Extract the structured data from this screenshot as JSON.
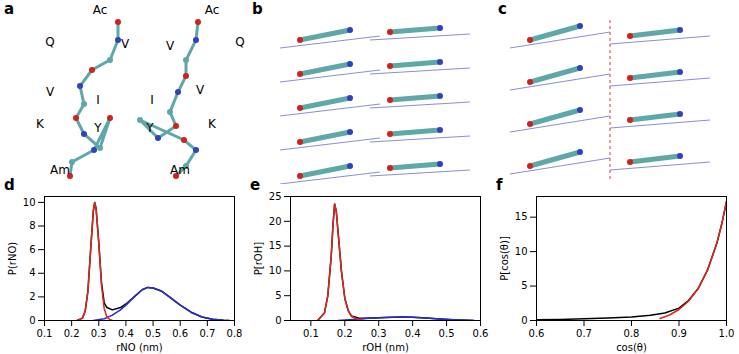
{
  "figure": {
    "panels": [
      {
        "label": "a",
        "residue_labels": [
          "Ac",
          "Q",
          "V",
          "V",
          "I",
          "K",
          "Y",
          "Am",
          "Ac",
          "V",
          "Q",
          "I",
          "V",
          "Y",
          "K",
          "Am"
        ]
      },
      {
        "label": "b"
      },
      {
        "label": "c"
      }
    ]
  },
  "chart_data": [
    {
      "type": "line",
      "title": "d",
      "x_label": "rNO (nm)",
      "y_label": "P(rNO)",
      "xlim": [
        0.1,
        0.8
      ],
      "xticks": [
        0.1,
        0.2,
        0.3,
        0.4,
        0.5,
        0.6,
        0.7,
        0.8
      ],
      "ylim": [
        0,
        10.5
      ],
      "yticks": [
        0,
        2,
        4,
        6,
        8,
        10
      ],
      "series": [
        {
          "color": "#000000",
          "x": [
            0.22,
            0.24,
            0.25,
            0.26,
            0.27,
            0.28,
            0.285,
            0.29,
            0.3,
            0.31,
            0.32,
            0.33,
            0.35,
            0.38,
            0.4,
            0.43,
            0.46,
            0.48,
            0.5,
            0.53,
            0.56,
            0.6,
            0.64,
            0.68,
            0.72,
            0.76,
            0.78
          ],
          "values": [
            0,
            0.2,
            0.8,
            2.5,
            6,
            9.3,
            10,
            9.5,
            6.6,
            3.2,
            1.5,
            1.1,
            0.9,
            1.1,
            1.4,
            2.0,
            2.6,
            2.8,
            2.75,
            2.5,
            2.0,
            1.3,
            0.7,
            0.3,
            0.1,
            0.02,
            0
          ]
        },
        {
          "color": "#2b2bd0",
          "x": [
            0.28,
            0.32,
            0.35,
            0.38,
            0.4,
            0.43,
            0.46,
            0.48,
            0.5,
            0.53,
            0.56,
            0.6,
            0.64,
            0.68,
            0.72,
            0.76,
            0.78
          ],
          "values": [
            0,
            0.15,
            0.45,
            0.9,
            1.3,
            2.0,
            2.6,
            2.8,
            2.75,
            2.5,
            2.0,
            1.3,
            0.7,
            0.3,
            0.1,
            0.02,
            0
          ]
        },
        {
          "color": "#e0261c",
          "x": [
            0.22,
            0.24,
            0.25,
            0.26,
            0.27,
            0.28,
            0.285,
            0.29,
            0.3,
            0.31,
            0.32,
            0.33,
            0.34,
            0.35
          ],
          "values": [
            0,
            0.2,
            0.8,
            2.5,
            6,
            9.3,
            10,
            9.5,
            6.5,
            3.0,
            1.0,
            0.3,
            0.1,
            0
          ]
        }
      ]
    },
    {
      "type": "line",
      "title": "e",
      "x_label": "rOH (nm)",
      "y_label": "P[rOH]",
      "xlim": [
        0.04,
        0.6
      ],
      "xticks": [
        0.1,
        0.2,
        0.3,
        0.4,
        0.5,
        0.6
      ],
      "ylim": [
        0,
        25
      ],
      "yticks": [
        0,
        5,
        10,
        15,
        20,
        25
      ],
      "series": [
        {
          "color": "#000000",
          "x": [
            0.12,
            0.14,
            0.15,
            0.16,
            0.165,
            0.17,
            0.175,
            0.18,
            0.19,
            0.2,
            0.21,
            0.22,
            0.24,
            0.26,
            0.3,
            0.34,
            0.37,
            0.4,
            0.44,
            0.48,
            0.52,
            0.56,
            0.58
          ],
          "values": [
            0,
            1.5,
            5,
            13,
            19,
            23.5,
            22,
            18,
            10,
            4.5,
            2,
            0.9,
            0.5,
            0.45,
            0.55,
            0.65,
            0.7,
            0.65,
            0.5,
            0.3,
            0.15,
            0.05,
            0
          ]
        },
        {
          "color": "#2b2bd0",
          "x": [
            0.18,
            0.22,
            0.26,
            0.3,
            0.34,
            0.37,
            0.4,
            0.44,
            0.48,
            0.52,
            0.56,
            0.58
          ],
          "values": [
            0,
            0.2,
            0.4,
            0.55,
            0.65,
            0.7,
            0.65,
            0.5,
            0.3,
            0.15,
            0.05,
            0
          ]
        },
        {
          "color": "#e0261c",
          "x": [
            0.12,
            0.14,
            0.15,
            0.16,
            0.165,
            0.17,
            0.175,
            0.18,
            0.19,
            0.2,
            0.21,
            0.22,
            0.24,
            0.26
          ],
          "values": [
            0,
            1.5,
            5,
            13,
            19,
            23.5,
            22,
            18,
            10,
            4.5,
            2,
            0.8,
            0.2,
            0
          ]
        }
      ]
    },
    {
      "type": "line",
      "title": "f",
      "x_label": "cos(θ)",
      "y_label": "P[cos(θ)]",
      "xlim": [
        0.6,
        1.0
      ],
      "xticks": [
        0.6,
        0.7,
        0.8,
        0.9,
        {
          "value": 1.0,
          "label": "1.0"
        }
      ],
      "ylim": [
        0,
        18
      ],
      "yticks": [
        0,
        5,
        10,
        15
      ],
      "series": [
        {
          "color": "#000000",
          "x": [
            0.6,
            0.65,
            0.7,
            0.75,
            0.8,
            0.84,
            0.87,
            0.9,
            0.92,
            0.94,
            0.96,
            0.98,
            0.99,
            1.0
          ],
          "values": [
            0.1,
            0.15,
            0.25,
            0.35,
            0.5,
            0.75,
            1.1,
            1.8,
            2.9,
            4.6,
            7.3,
            11.3,
            14,
            17.3
          ]
        },
        {
          "color": "#e0261c",
          "x": [
            0.86,
            0.88,
            0.9,
            0.92,
            0.94,
            0.96,
            0.98,
            0.99,
            1.0
          ],
          "values": [
            0.3,
            0.8,
            1.6,
            2.8,
            4.6,
            7.3,
            11.3,
            14,
            17.3
          ]
        }
      ]
    }
  ]
}
